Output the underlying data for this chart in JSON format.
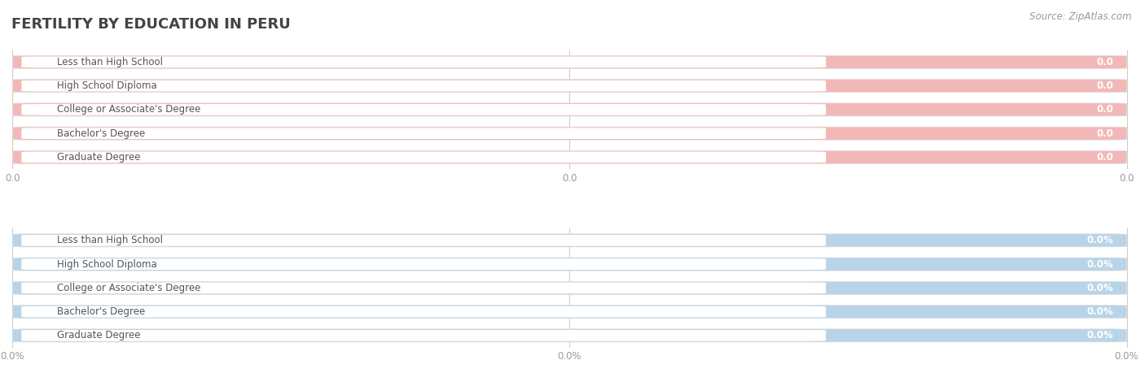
{
  "title": "FERTILITY BY EDUCATION IN PERU",
  "source_text": "Source: ZipAtlas.com",
  "categories": [
    "Less than High School",
    "High School Diploma",
    "College or Associate's Degree",
    "Bachelor's Degree",
    "Graduate Degree"
  ],
  "values_top": [
    0.0,
    0.0,
    0.0,
    0.0,
    0.0
  ],
  "values_bottom": [
    0.0,
    0.0,
    0.0,
    0.0,
    0.0
  ],
  "top_bar_color": "#e8888a",
  "top_bar_bg": "#f2b8b8",
  "bottom_bar_color": "#90b8d8",
  "bottom_bar_bg": "#b8d4e8",
  "top_xtick_labels": [
    "0.0",
    "0.0",
    "0.0"
  ],
  "bottom_xtick_labels": [
    "0.0%",
    "0.0%",
    "0.0%"
  ],
  "bg_color": "#ffffff",
  "row_bg_color": "#f0f0f0",
  "title_fontsize": 13,
  "label_fontsize": 8.5,
  "value_fontsize": 8.5,
  "tick_fontsize": 8.5,
  "source_fontsize": 8.5,
  "title_color": "#444444",
  "label_color": "#555555",
  "tick_color": "#999999",
  "white_pill_color": "#ffffff",
  "value_text_color": "#ffffff"
}
